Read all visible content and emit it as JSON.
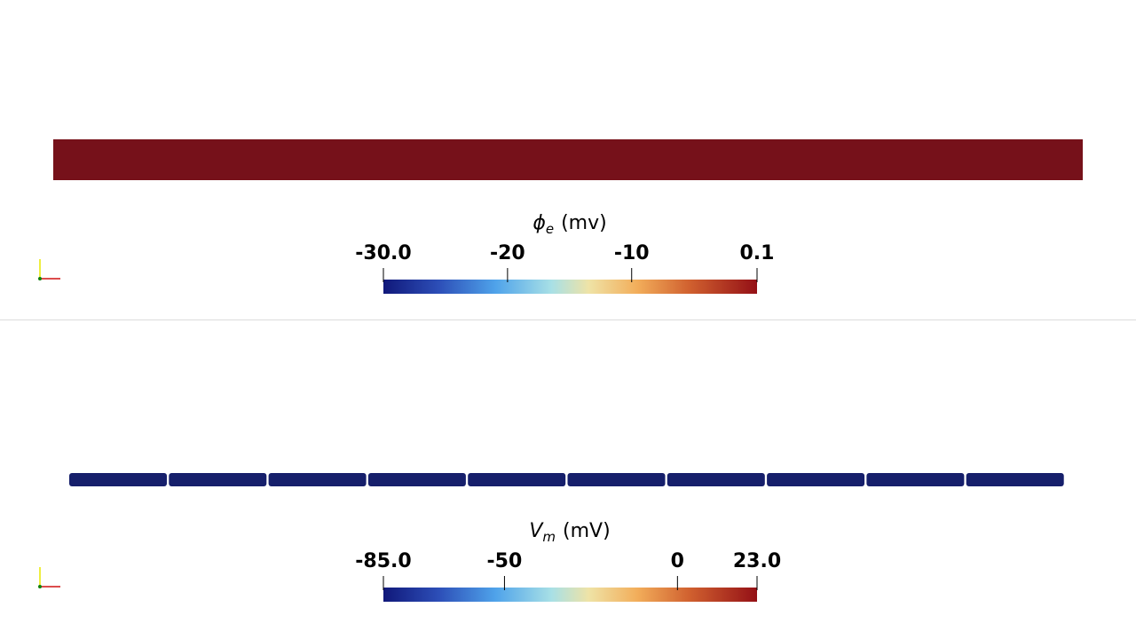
{
  "panels": [
    {
      "title": {
        "symbol": "ϕ",
        "subscript": "e",
        "unit": "(mv)"
      },
      "range": [
        -30,
        0.1
      ],
      "ticks": [
        {
          "value": -30,
          "label": "-30.0"
        },
        -20,
        -10,
        0.1
      ]
    },
    {
      "title": {
        "symbol": "V",
        "subscript": "m",
        "unit": "(mV)"
      },
      "range": [
        -85,
        23
      ],
      "ticks": [
        {
          "value": -85,
          "label": "-85.0"
        },
        -50,
        0,
        {
          "value": 23,
          "label": "23.0"
        }
      ]
    }
  ]
}
